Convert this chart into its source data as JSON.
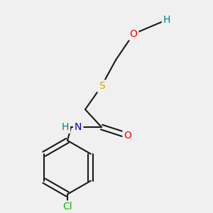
{
  "bg_color": "#f0f0f0",
  "bond_color": "#1a1a1a",
  "atom_colors": {
    "O": "#ff0000",
    "H_hydroxyl": "#008080",
    "S": "#ccaa00",
    "N": "#0000cc",
    "Cl": "#00bb00"
  },
  "figsize": [
    3.0,
    3.0
  ],
  "dpi": 100,
  "font_size": 10
}
